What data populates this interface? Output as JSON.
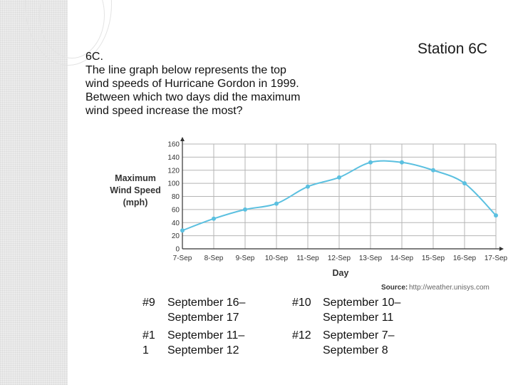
{
  "slide": {
    "station_label": "Station 6C",
    "question_lines": [
      "6C.",
      "The line graph below represents the top",
      "wind speeds of Hurricane Gordon in 1999.",
      "Between which two days did the maximum",
      "wind speed increase the most?"
    ]
  },
  "chart_data": {
    "type": "line",
    "title": "",
    "xlabel": "Day",
    "ylabel_lines": [
      "Maximum",
      "Wind Speed",
      "(mph)"
    ],
    "categories": [
      "7-Sep",
      "8-Sep",
      "9-Sep",
      "10-Sep",
      "11-Sep",
      "12-Sep",
      "13-Sep",
      "14-Sep",
      "15-Sep",
      "16-Sep",
      "17-Sep"
    ],
    "values": [
      28,
      46,
      60,
      69,
      95,
      109,
      132,
      132,
      120,
      100,
      51
    ],
    "ylim": [
      0,
      160
    ],
    "yticks": [
      0,
      20,
      40,
      60,
      80,
      100,
      120,
      140,
      160
    ],
    "grid": true,
    "line_color": "#5bc0e0",
    "source_label": "Source:",
    "source_url": "http://weather.unisys.com"
  },
  "answers": [
    {
      "number": "#9",
      "line1": "September 16–",
      "line2": "September 17"
    },
    {
      "number": "#10",
      "line1": "September 10–",
      "line2": "September 11"
    },
    {
      "number": "#1\n1",
      "line1": "September 11–",
      "line2": "September 12"
    },
    {
      "number": "#12",
      "line1": "September 7–",
      "line2": "September 8"
    }
  ]
}
